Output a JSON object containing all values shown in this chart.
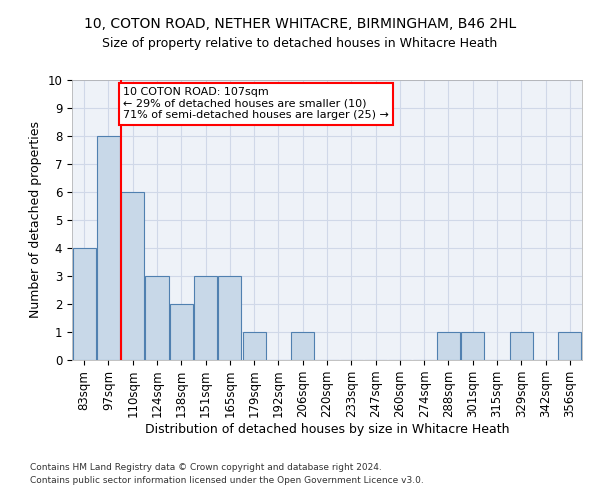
{
  "title1": "10, COTON ROAD, NETHER WHITACRE, BIRMINGHAM, B46 2HL",
  "title2": "Size of property relative to detached houses in Whitacre Heath",
  "xlabel": "Distribution of detached houses by size in Whitacre Heath",
  "ylabel": "Number of detached properties",
  "bins": [
    "83sqm",
    "97sqm",
    "110sqm",
    "124sqm",
    "138sqm",
    "151sqm",
    "165sqm",
    "179sqm",
    "192sqm",
    "206sqm",
    "220sqm",
    "233sqm",
    "247sqm",
    "260sqm",
    "274sqm",
    "288sqm",
    "301sqm",
    "315sqm",
    "329sqm",
    "342sqm",
    "356sqm"
  ],
  "bar_heights": [
    4,
    8,
    6,
    3,
    2,
    3,
    3,
    1,
    0,
    1,
    0,
    0,
    0,
    0,
    0,
    1,
    1,
    0,
    1,
    0,
    1
  ],
  "bar_color": "#c8d8e8",
  "bar_edge_color": "#5080b0",
  "annotation_text": "10 COTON ROAD: 107sqm\n← 29% of detached houses are smaller (10)\n71% of semi-detached houses are larger (25) →",
  "annotation_box_color": "white",
  "annotation_box_edge_color": "red",
  "ylim": [
    0,
    10
  ],
  "yticks": [
    0,
    1,
    2,
    3,
    4,
    5,
    6,
    7,
    8,
    9,
    10
  ],
  "footer1": "Contains HM Land Registry data © Crown copyright and database right 2024.",
  "footer2": "Contains public sector information licensed under the Open Government Licence v3.0.",
  "grid_color": "#d0d8e8",
  "background_color": "#eef2f8"
}
